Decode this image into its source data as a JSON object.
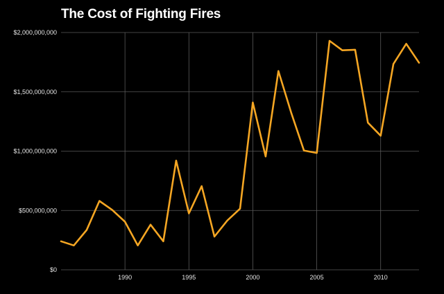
{
  "chart_data": {
    "type": "line",
    "title": "The Cost of Fighting Fires",
    "xlabel": "",
    "ylabel": "",
    "x": [
      1985,
      1986,
      1987,
      1988,
      1989,
      1990,
      1991,
      1992,
      1993,
      1994,
      1995,
      1996,
      1997,
      1998,
      1999,
      2000,
      2001,
      2002,
      2003,
      2004,
      2005,
      2006,
      2007,
      2008,
      2009,
      2010,
      2011,
      2012,
      2013
    ],
    "series": [
      {
        "values": [
          240000000,
          205000000,
          335000000,
          580000000,
          505000000,
          405000000,
          205000000,
          380000000,
          240000000,
          920000000,
          475000000,
          705000000,
          280000000,
          415000000,
          515000000,
          1410000000,
          955000000,
          1675000000,
          1325000000,
          1005000000,
          985000000,
          1930000000,
          1850000000,
          1855000000,
          1240000000,
          1130000000,
          1735000000,
          1905000000,
          1745000000
        ],
        "color": "#f5a623"
      }
    ],
    "xlim": [
      1985,
      2013
    ],
    "ylim": [
      0,
      2000000000
    ],
    "xticks": [
      1990,
      1995,
      2000,
      2005,
      2010
    ],
    "yticks": [
      0,
      500000000,
      1000000000,
      1500000000,
      2000000000
    ],
    "ytick_labels": [
      "$0",
      "$500,000,000",
      "$1,000,000,000",
      "$1,500,000,000",
      "$2,000,000,000"
    ],
    "xtick_labels": [
      "1990",
      "1995",
      "2000",
      "2005",
      "2010"
    ],
    "grid": true,
    "legend": "none",
    "background": "#000000",
    "grid_color": "#5a5a5a"
  }
}
